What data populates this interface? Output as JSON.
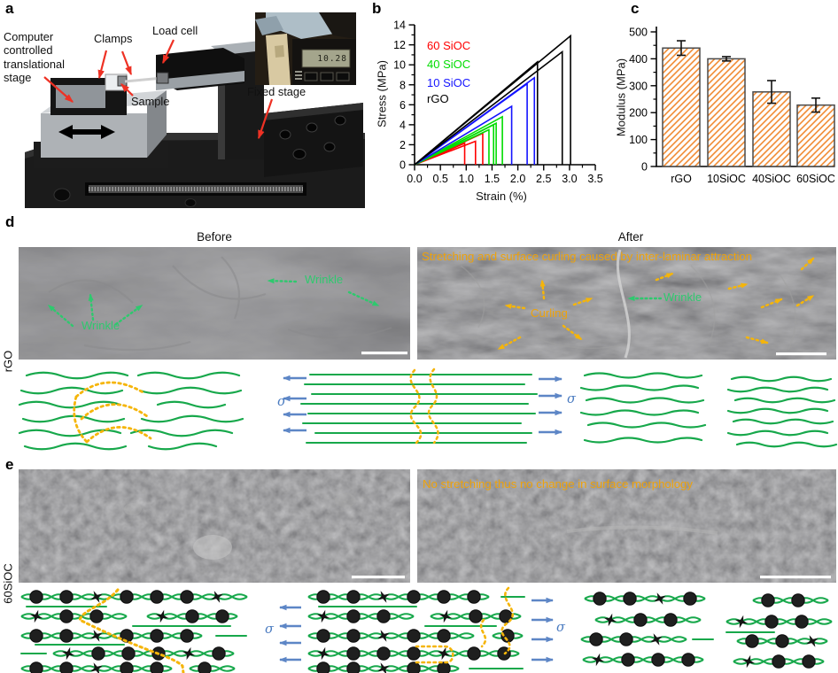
{
  "panels": {
    "a": "a",
    "b": "b",
    "c": "c",
    "d": "d",
    "e": "e"
  },
  "panel_a": {
    "labels": {
      "stage": "Computer\ncontrolled\ntranslational\nstage",
      "clamps": "Clamps",
      "load_cell": "Load cell",
      "sample": "Sample",
      "fixed_stage": "Fixed stage"
    },
    "inset_display_value": "10.28"
  },
  "chart_data": [
    {
      "type": "line",
      "xlabel": "Strain (%)",
      "ylabel": "Stress (MPa)",
      "xlim": [
        0.0,
        3.5
      ],
      "ylim": [
        0,
        14
      ],
      "x_ticks": [
        "0.0",
        "0.5",
        "1.0",
        "1.5",
        "2.0",
        "2.5",
        "3.0",
        "3.5"
      ],
      "y_ticks": [
        "0",
        "2",
        "4",
        "6",
        "8",
        "10",
        "12",
        "14"
      ],
      "legend_position": "upper-left",
      "series": [
        {
          "name": "60 SiOC",
          "color": "#ff0000",
          "samples": [
            {
              "failure_strain": 0.97,
              "peak_stress": 2.15
            },
            {
              "failure_strain": 1.18,
              "peak_stress": 2.35
            },
            {
              "failure_strain": 1.32,
              "peak_stress": 3.15
            }
          ]
        },
        {
          "name": "40 SiOC",
          "color": "#00dc00",
          "samples": [
            {
              "failure_strain": 1.44,
              "peak_stress": 3.5
            },
            {
              "failure_strain": 1.53,
              "peak_stress": 4.0
            },
            {
              "failure_strain": 1.58,
              "peak_stress": 4.15
            },
            {
              "failure_strain": 1.7,
              "peak_stress": 4.8
            }
          ]
        },
        {
          "name": "10 SiOC",
          "color": "#1414ff",
          "samples": [
            {
              "failure_strain": 1.88,
              "peak_stress": 5.85
            },
            {
              "failure_strain": 2.18,
              "peak_stress": 8.1
            },
            {
              "failure_strain": 2.32,
              "peak_stress": 8.7
            }
          ]
        },
        {
          "name": "rGO",
          "color": "#000000",
          "samples": [
            {
              "failure_strain": 2.38,
              "peak_stress": 10.3
            },
            {
              "failure_strain": 2.86,
              "peak_stress": 11.3
            },
            {
              "failure_strain": 3.02,
              "peak_stress": 12.9
            }
          ]
        }
      ]
    },
    {
      "type": "bar",
      "ylabel": "Modulus (MPa)",
      "ylim": [
        0,
        500
      ],
      "y_ticks": [
        "0",
        "100",
        "200",
        "300",
        "400",
        "500"
      ],
      "categories": [
        "rGO",
        "10SiOC",
        "40SiOC",
        "60SiOC"
      ],
      "values": [
        440,
        400,
        277,
        228
      ],
      "errors": [
        27,
        8,
        42,
        26
      ],
      "bar_fill": "orange-diagonal-hatch"
    }
  ],
  "panel_d": {
    "title_before": "Before",
    "title_after": "After",
    "row_label": "rGO",
    "wrinkle_label_1": "Wrinkle",
    "wrinkle_label_2": "Wrinkle",
    "stretch_note": "Stretching and surface curling caused by inter-laminar attraction",
    "curling_label": "Curling",
    "wrinkle_label_after": "Wrinkle",
    "sigma": "σ"
  },
  "panel_e": {
    "row_label": "60SiOC",
    "note": "No stretching thus no change in surface morphology",
    "sigma": "σ"
  },
  "colors": {
    "annotation_green": "#2ec96e",
    "annotation_orange": "#eda20c",
    "schematic_green": "#17a84b",
    "schematic_orange": "#f5b50a",
    "stress_arrow_blue": "#5d86c6",
    "callout_red": "#ee3124",
    "bar_hatch_orange": "#f08223"
  }
}
